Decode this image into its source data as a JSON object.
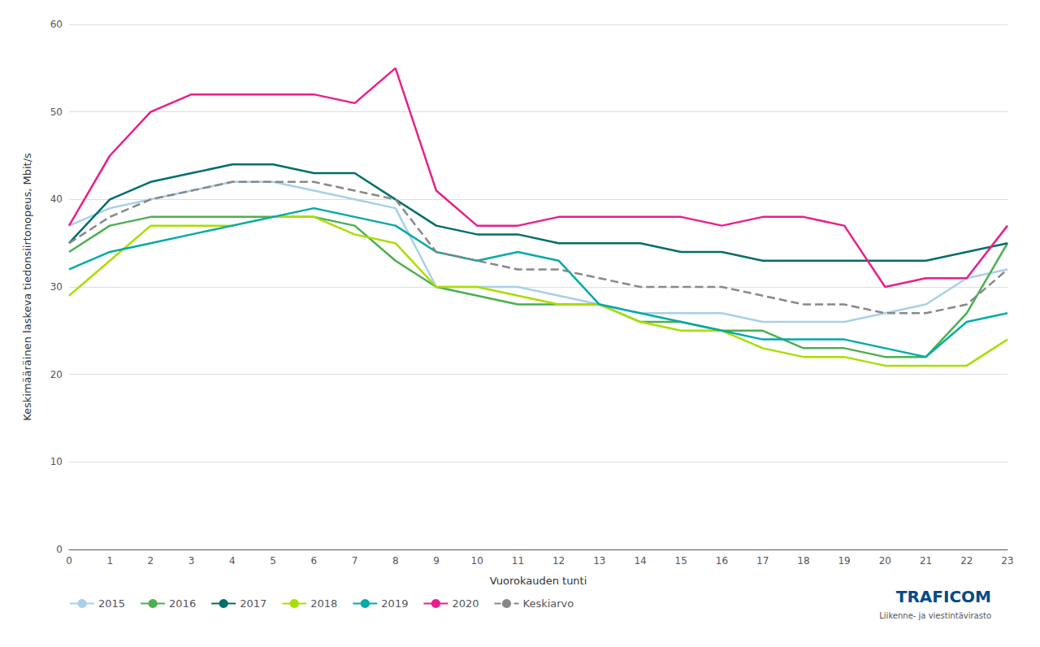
{
  "chart_data": {
    "type": "line",
    "x": [
      0,
      1,
      2,
      3,
      4,
      5,
      6,
      7,
      8,
      9,
      10,
      11,
      12,
      13,
      14,
      15,
      16,
      17,
      18,
      19,
      20,
      21,
      22,
      23
    ],
    "xlabel": "Vuorokauden tunti",
    "ylabel": "Keskimääräinen laskeva tiedonsiirtonopeus, Mbit/s",
    "xlim": [
      0,
      23
    ],
    "xticks": [
      0,
      1,
      2,
      3,
      4,
      5,
      6,
      7,
      8,
      9,
      10,
      11,
      12,
      13,
      14,
      15,
      16,
      17,
      18,
      19,
      20,
      21,
      22,
      23
    ],
    "ylim": [
      0,
      60
    ],
    "yticks": [
      0,
      10,
      20,
      30,
      40,
      50,
      60
    ],
    "grid": true,
    "legend": "bottom",
    "series": [
      {
        "name": "2015",
        "color": "#a8d0e8",
        "line_style": "solid",
        "values": [
          37,
          39,
          40,
          41,
          42,
          42,
          41,
          40,
          39,
          30,
          30,
          30,
          29,
          28,
          27,
          27,
          27,
          26,
          26,
          26,
          27,
          28,
          31,
          32
        ]
      },
      {
        "name": "2016",
        "color": "#4caf50",
        "line_style": "solid",
        "values": [
          34,
          37,
          38,
          38,
          38,
          38,
          38,
          37,
          33,
          30,
          29,
          28,
          28,
          28,
          26,
          26,
          25,
          25,
          23,
          23,
          22,
          22,
          27,
          35
        ]
      },
      {
        "name": "2017",
        "color": "#006d6d",
        "line_style": "solid",
        "values": [
          35,
          40,
          42,
          43,
          44,
          44,
          43,
          43,
          40,
          37,
          36,
          36,
          35,
          35,
          35,
          34,
          34,
          33,
          33,
          33,
          33,
          33,
          34,
          35
        ]
      },
      {
        "name": "2018",
        "color": "#aadd00",
        "line_style": "solid",
        "values": [
          29,
          33,
          37,
          37,
          37,
          38,
          38,
          36,
          35,
          30,
          30,
          29,
          28,
          28,
          26,
          25,
          25,
          23,
          22,
          22,
          21,
          21,
          21,
          24
        ]
      },
      {
        "name": "2019",
        "color": "#00aaaa",
        "line_style": "solid",
        "values": [
          32,
          34,
          35,
          36,
          37,
          38,
          39,
          38,
          37,
          34,
          33,
          34,
          33,
          28,
          27,
          26,
          25,
          24,
          24,
          24,
          23,
          22,
          26,
          27
        ]
      },
      {
        "name": "2020",
        "color": "#e91e8c",
        "line_style": "solid",
        "values": [
          37,
          45,
          50,
          52,
          52,
          52,
          52,
          51,
          55,
          41,
          37,
          37,
          38,
          38,
          38,
          38,
          37,
          38,
          38,
          37,
          30,
          31,
          31,
          37
        ]
      },
      {
        "name": "Keskiarvo",
        "color": "#888888",
        "line_style": "dashed",
        "values": [
          35,
          38,
          40,
          41,
          42,
          42,
          42,
          41,
          40,
          34,
          33,
          32,
          32,
          31,
          30,
          30,
          30,
          29,
          28,
          28,
          27,
          27,
          28,
          32
        ]
      }
    ],
    "annotations": [
      {
        "text": "TRAFICOM",
        "color": "#004B87"
      },
      {
        "text": "Liikenne- ja viestintävirasto",
        "color": "#555555"
      }
    ]
  }
}
